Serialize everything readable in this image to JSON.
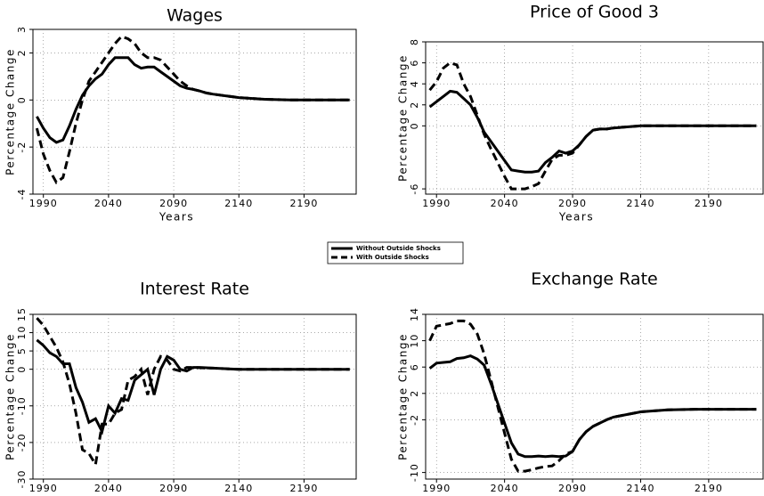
{
  "chart_data": [
    {
      "type": "line",
      "title": "Wages",
      "y_label": "Percentage Change",
      "x_label": "Years",
      "x": [
        1985,
        1990,
        1995,
        2000,
        2005,
        2010,
        2015,
        2020,
        2025,
        2030,
        2035,
        2040,
        2045,
        2050,
        2055,
        2060,
        2065,
        2070,
        2075,
        2080,
        2085,
        2090,
        2095,
        2100,
        2105,
        2110,
        2115,
        2120,
        2140,
        2160,
        2180,
        2200,
        2225
      ],
      "xlim": [
        1982,
        2230
      ],
      "xticks": [
        1990,
        2040,
        2090,
        2140,
        2190
      ],
      "ylim": [
        -4,
        3
      ],
      "yticks": [
        -4,
        -2,
        0,
        2,
        3
      ],
      "grid": true,
      "series": [
        {
          "name": "Without Outside Shocks",
          "color": "#000000",
          "dash": false,
          "values": [
            -0.7,
            -1.2,
            -1.6,
            -1.8,
            -1.7,
            -1.1,
            -0.4,
            0.2,
            0.6,
            0.9,
            1.1,
            1.5,
            1.8,
            1.8,
            1.8,
            1.5,
            1.35,
            1.4,
            1.4,
            1.2,
            1.0,
            0.8,
            0.6,
            0.5,
            0.45,
            0.38,
            0.3,
            0.25,
            0.1,
            0.03,
            0,
            0,
            0
          ]
        },
        {
          "name": "With Outside Shocks",
          "color": "#000000",
          "dash": true,
          "values": [
            -1.2,
            -2.3,
            -3.0,
            -3.5,
            -3.3,
            -2.2,
            -1.0,
            0.0,
            0.8,
            1.2,
            1.6,
            2.0,
            2.4,
            2.7,
            2.6,
            2.4,
            2.0,
            1.8,
            1.8,
            1.7,
            1.4,
            1.1,
            0.8,
            0.6,
            0.45,
            0.38,
            0.3,
            0.25,
            0.1,
            0.03,
            0,
            0,
            0
          ]
        }
      ]
    },
    {
      "type": "line",
      "title": "Price of Good 3",
      "y_label": "Percentage Change",
      "x_label": "Years",
      "x": [
        1985,
        1990,
        1995,
        2000,
        2005,
        2010,
        2015,
        2020,
        2025,
        2030,
        2035,
        2040,
        2045,
        2050,
        2055,
        2060,
        2065,
        2070,
        2075,
        2080,
        2085,
        2090,
        2095,
        2100,
        2105,
        2110,
        2115,
        2120,
        2140,
        2160,
        2180,
        2200,
        2225
      ],
      "xlim": [
        1982,
        2230
      ],
      "xticks": [
        1990,
        2040,
        2090,
        2140,
        2190
      ],
      "ylim": [
        -6.5,
        8
      ],
      "yticks": [
        -6,
        0,
        2,
        4,
        6,
        8
      ],
      "grid": true,
      "series": [
        {
          "color": "#000000",
          "dash": false,
          "values": [
            1.8,
            2.3,
            2.8,
            3.3,
            3.2,
            2.6,
            2.0,
            0.8,
            -0.6,
            -1.5,
            -2.4,
            -3.3,
            -4.2,
            -4.3,
            -4.4,
            -4.4,
            -4.3,
            -3.5,
            -3.0,
            -2.4,
            -2.6,
            -2.4,
            -1.8,
            -1.0,
            -0.4,
            -0.3,
            -0.3,
            -0.2,
            0,
            0,
            0,
            0,
            0
          ]
        },
        {
          "color": "#000000",
          "dash": true,
          "values": [
            3.4,
            4.2,
            5.5,
            6.0,
            5.8,
            4.0,
            2.8,
            1.0,
            -0.8,
            -2.2,
            -3.5,
            -4.8,
            -6.0,
            -6.0,
            -6.0,
            -5.8,
            -5.5,
            -4.3,
            -3.2,
            -2.8,
            -2.8,
            -2.6,
            -1.8,
            -1.0,
            -0.4,
            -0.3,
            -0.3,
            -0.2,
            0,
            0,
            0,
            0,
            0
          ]
        }
      ]
    },
    {
      "type": "line",
      "title": "Interest Rate",
      "y_label": "Percentage Change",
      "x_label": "Years",
      "x": [
        1985,
        1990,
        1995,
        2000,
        2005,
        2010,
        2015,
        2020,
        2025,
        2030,
        2035,
        2040,
        2045,
        2050,
        2055,
        2060,
        2065,
        2070,
        2075,
        2080,
        2085,
        2090,
        2095,
        2100,
        2105,
        2110,
        2115,
        2120,
        2140,
        2160,
        2180,
        2200,
        2225
      ],
      "xlim": [
        1982,
        2230
      ],
      "xticks": [
        1990,
        2040,
        2090,
        2140,
        2190
      ],
      "ylim": [
        -30,
        15
      ],
      "yticks": [
        -30,
        -20,
        -10,
        0,
        5,
        10,
        15
      ],
      "grid": true,
      "series": [
        {
          "color": "#000000",
          "dash": false,
          "values": [
            8,
            6.5,
            4.5,
            3.5,
            1.5,
            1.5,
            -5,
            -9,
            -14.5,
            -13.5,
            -17,
            -10,
            -12,
            -8,
            -8.5,
            -3,
            -1.5,
            0,
            -7,
            0,
            3.5,
            2.5,
            0,
            -0.5,
            0.5,
            0.5,
            0.4,
            0.3,
            0,
            0,
            0,
            0,
            0
          ]
        },
        {
          "color": "#000000",
          "dash": true,
          "values": [
            14,
            12,
            9,
            6,
            2,
            -4,
            -12,
            -22,
            -23,
            -26,
            -15,
            -15,
            -12,
            -11,
            -3,
            -2,
            0,
            -7,
            0,
            3.5,
            2.5,
            0,
            -0.5,
            0.5,
            0.5,
            0.4,
            0.3,
            0.3,
            0,
            0,
            0,
            0,
            0
          ]
        }
      ]
    },
    {
      "type": "line",
      "title": "Exchange Rate",
      "y_label": "Percentage Change",
      "x_label": "Years",
      "x": [
        1985,
        1990,
        1995,
        2000,
        2005,
        2010,
        2015,
        2020,
        2025,
        2030,
        2035,
        2040,
        2045,
        2050,
        2055,
        2060,
        2065,
        2070,
        2075,
        2080,
        2085,
        2090,
        2095,
        2100,
        2105,
        2110,
        2115,
        2120,
        2140,
        2160,
        2180,
        2200,
        2225
      ],
      "xlim": [
        1982,
        2230
      ],
      "xticks": [
        1990,
        2040,
        2090,
        2140,
        2190
      ],
      "ylim": [
        -11,
        14
      ],
      "yticks": [
        -10,
        -2,
        2,
        6,
        10,
        14
      ],
      "grid": true,
      "series": [
        {
          "color": "#000000",
          "dash": false,
          "values": [
            5.8,
            6.6,
            6.7,
            6.8,
            7.3,
            7.4,
            7.7,
            7.2,
            6.3,
            3.5,
            0.5,
            -2.5,
            -5.5,
            -7.2,
            -7.6,
            -7.6,
            -7.5,
            -7.6,
            -7.5,
            -7.6,
            -7.5,
            -6.8,
            -5,
            -3.8,
            -3,
            -2.5,
            -2,
            -1.6,
            -0.8,
            -0.5,
            -0.4,
            -0.4,
            -0.4
          ]
        },
        {
          "color": "#000000",
          "dash": true,
          "values": [
            10,
            12.2,
            12.4,
            12.6,
            13,
            13,
            12.5,
            11,
            8,
            4,
            0,
            -4,
            -8,
            -9.8,
            -9.8,
            -9.6,
            -9.3,
            -9.1,
            -9,
            -8.2,
            -7.2,
            -6.8,
            -5,
            -3.8,
            -3,
            -2.5,
            -2,
            -1.6,
            -0.8,
            -0.5,
            -0.4,
            -0.4,
            -0.4
          ]
        }
      ]
    }
  ]
}
